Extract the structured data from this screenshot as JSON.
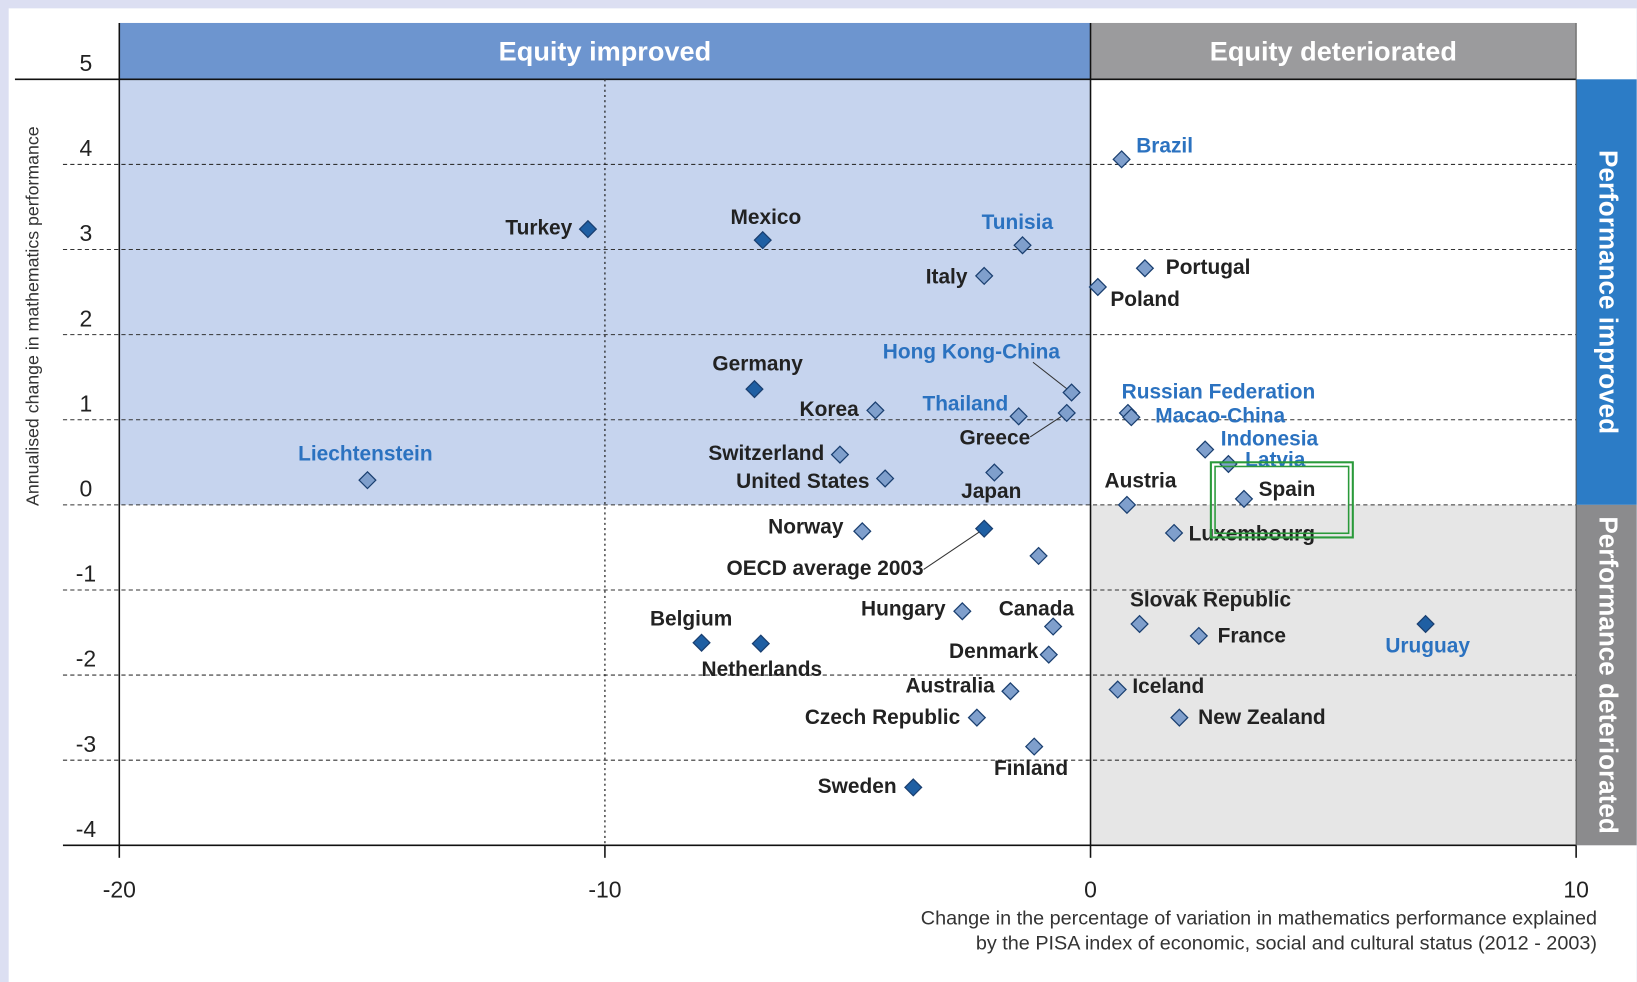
{
  "chart_data": {
    "type": "scatter",
    "y_label": "Annualised change in mathematics performance",
    "x_label": [
      "Change in the percentage of variation in mathematics performance explained",
      "by the PISA index of economic, social and cultural status (2012 - 2003)"
    ],
    "top_headers": [
      "Equity improved",
      "Equity deteriorated"
    ],
    "side_headers": [
      "Performance improved",
      "Performance deteriorated"
    ],
    "xlim": [
      -20,
      10
    ],
    "ylim": [
      -4,
      5
    ],
    "xticks": [
      -20,
      -10,
      0,
      10
    ],
    "yticks": [
      -4,
      -3,
      -2,
      -1,
      0,
      1,
      2,
      3,
      4,
      5
    ],
    "grid": true,
    "points": [
      {
        "label": "Turkey",
        "x": -10.35,
        "y": 3.24,
        "color": "#1f5fa3",
        "label_color": "#222222"
      },
      {
        "label": "Mexico",
        "x": -6.75,
        "y": 3.11,
        "color": "#1f5fa3",
        "label_color": "#222222"
      },
      {
        "label": "Tunisia",
        "x": -1.4,
        "y": 3.05,
        "color": "#7f9fcc",
        "label_color": "#2b72c0"
      },
      {
        "label": "Italy",
        "x": -2.19,
        "y": 2.69,
        "color": "#7f9fcc",
        "label_color": "#222222"
      },
      {
        "label": "Brazil",
        "x": 0.64,
        "y": 4.06,
        "color": "#7f9fcc",
        "label_color": "#2b72c0"
      },
      {
        "label": "Portugal",
        "x": 1.12,
        "y": 2.78,
        "color": "#7f9fcc",
        "label_color": "#222222"
      },
      {
        "label": "Poland",
        "x": 0.15,
        "y": 2.56,
        "color": "#7f9fcc",
        "label_color": "#222222"
      },
      {
        "label": "Germany",
        "x": -6.92,
        "y": 1.36,
        "color": "#1f5fa3",
        "label_color": "#222222"
      },
      {
        "label": "Hong Kong-China",
        "x": -0.39,
        "y": 1.32,
        "color": "#7f9fcc",
        "label_color": "#2b72c0"
      },
      {
        "label": "Korea",
        "x": -4.43,
        "y": 1.11,
        "color": "#7f9fcc",
        "label_color": "#222222"
      },
      {
        "label": "Thailand",
        "x": -1.48,
        "y": 1.04,
        "color": "#7f9fcc",
        "label_color": "#2b72c0"
      },
      {
        "label": "Greece",
        "x": -0.49,
        "y": 1.08,
        "color": "#7f9fcc",
        "label_color": "#222222"
      },
      {
        "label": "Russian Federation",
        "x": 0.77,
        "y": 1.08,
        "color": "#7f9fcc",
        "label_color": "#2b72c0"
      },
      {
        "label": "Macao-China",
        "x": 0.84,
        "y": 1.03,
        "color": "#7f9fcc",
        "label_color": "#2b72c0"
      },
      {
        "label": "Indonesia",
        "x": 2.36,
        "y": 0.65,
        "color": "#7f9fcc",
        "label_color": "#2b72c0"
      },
      {
        "label": "Latvia",
        "x": 2.84,
        "y": 0.48,
        "color": "#7f9fcc",
        "label_color": "#2b72c0"
      },
      {
        "label": "Spain",
        "x": 3.16,
        "y": 0.07,
        "color": "#7f9fcc",
        "label_color": "#222222"
      },
      {
        "label": "Austria",
        "x": 0.75,
        "y": 0.0,
        "color": "#7f9fcc",
        "label_color": "#222222"
      },
      {
        "label": "Liechtenstein",
        "x": -14.89,
        "y": 0.29,
        "color": "#7f9fcc",
        "label_color": "#2b72c0"
      },
      {
        "label": "Switzerland",
        "x": -5.16,
        "y": 0.59,
        "color": "#7f9fcc",
        "label_color": "#222222"
      },
      {
        "label": "United States",
        "x": -4.23,
        "y": 0.31,
        "color": "#7f9fcc",
        "label_color": "#222222"
      },
      {
        "label": "Japan",
        "x": -1.98,
        "y": 0.38,
        "color": "#7f9fcc",
        "label_color": "#222222"
      },
      {
        "label": "Norway",
        "x": -4.7,
        "y": -0.31,
        "color": "#7f9fcc",
        "label_color": "#222222"
      },
      {
        "label": "OECD average 2003",
        "x": -2.19,
        "y": -0.28,
        "color": "#1f5fa3",
        "label_color": "#222222"
      },
      {
        "x": -1.07,
        "y": -0.6,
        "color": "#7f9fcc"
      },
      {
        "label": "Luxembourg",
        "x": 1.72,
        "y": -0.33,
        "color": "#7f9fcc",
        "label_color": "#222222"
      },
      {
        "label": "Hungary",
        "x": -2.64,
        "y": -1.25,
        "color": "#7f9fcc",
        "label_color": "#222222"
      },
      {
        "label": "Canada",
        "x": -0.77,
        "y": -1.43,
        "color": "#7f9fcc",
        "label_color": "#222222"
      },
      {
        "label": "Belgium",
        "x": -8.01,
        "y": -1.62,
        "color": "#1f5fa3",
        "label_color": "#222222"
      },
      {
        "label": "Netherlands",
        "x": -6.79,
        "y": -1.63,
        "color": "#1f5fa3",
        "label_color": "#222222"
      },
      {
        "label": "Denmark",
        "x": -0.86,
        "y": -1.76,
        "color": "#7f9fcc",
        "label_color": "#222222"
      },
      {
        "label": "Slovak Republic",
        "x": 1.01,
        "y": -1.4,
        "color": "#7f9fcc",
        "label_color": "#222222"
      },
      {
        "label": "France",
        "x": 2.23,
        "y": -1.54,
        "color": "#7f9fcc",
        "label_color": "#222222"
      },
      {
        "label": "Uruguay",
        "x": 6.9,
        "y": -1.4,
        "color": "#1f5fa3",
        "label_color": "#2b72c0"
      },
      {
        "label": "Australia",
        "x": -1.65,
        "y": -2.19,
        "color": "#7f9fcc",
        "label_color": "#222222"
      },
      {
        "label": "Iceland",
        "x": 0.56,
        "y": -2.17,
        "color": "#7f9fcc",
        "label_color": "#222222"
      },
      {
        "label": "Czech Republic",
        "x": -2.34,
        "y": -2.5,
        "color": "#7f9fcc",
        "label_color": "#222222"
      },
      {
        "label": "New Zealand",
        "x": 1.83,
        "y": -2.5,
        "color": "#7f9fcc",
        "label_color": "#222222"
      },
      {
        "label": "Finland",
        "x": -1.16,
        "y": -2.84,
        "color": "#7f9fcc",
        "label_color": "#222222"
      },
      {
        "label": "Sweden",
        "x": -3.65,
        "y": -3.32,
        "color": "#1f5fa3",
        "label_color": "#222222"
      }
    ]
  }
}
